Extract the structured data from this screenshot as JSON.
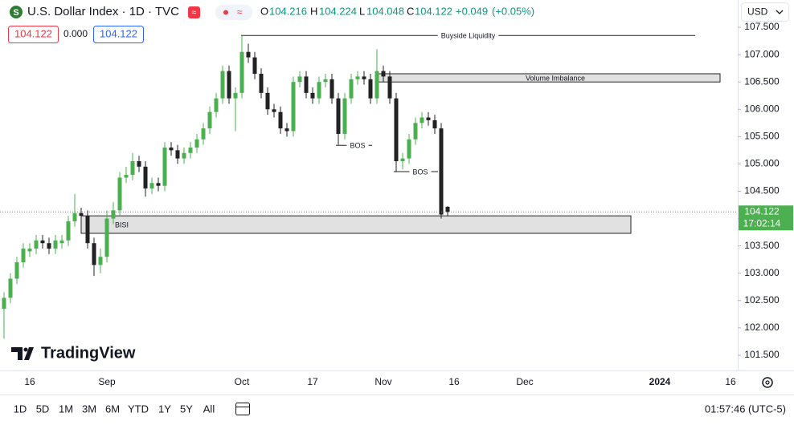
{
  "header": {
    "symbol": "U.S. Dollar Index · 1D · TVC",
    "o_label": "O",
    "h_label": "H",
    "l_label": "L",
    "c_label": "C",
    "change": "+0.049",
    "change_pct": "(+0.05%)",
    "bid": "104.122",
    "spread": "0.000",
    "ask": "104.122",
    "currency": "USD",
    "countdown": "17:02:14",
    "logo_text": "TradingView"
  },
  "toolbar": {
    "ranges": [
      "1D",
      "5D",
      "1M",
      "3M",
      "6M",
      "YTD",
      "1Y",
      "5Y",
      "All"
    ],
    "clock": "01:57:46 (UTC-5)"
  },
  "chart_data": {
    "type": "candlestick",
    "up_color": "#4caf50",
    "down_color": "#222222",
    "ylim": [
      101.22,
      108.0
    ],
    "yticks": [
      {
        "value": 101.5,
        "label": "101.500"
      },
      {
        "value": 102,
        "label": "102.000"
      },
      {
        "value": 102.5,
        "label": "102.500"
      },
      {
        "value": 103,
        "label": "103.000"
      },
      {
        "value": 103.5,
        "label": "103.500"
      },
      {
        "value": 104,
        "label": "104.000"
      },
      {
        "value": 104.5,
        "label": "104.500"
      },
      {
        "value": 105,
        "label": "105.000"
      },
      {
        "value": 105.5,
        "label": "105.500"
      },
      {
        "value": 106,
        "label": "106.000"
      },
      {
        "value": 106.5,
        "label": "106.500"
      },
      {
        "value": 107,
        "label": "107.000"
      },
      {
        "value": 107.5,
        "label": "107.500"
      }
    ],
    "categories": [
      null,
      null,
      null,
      null,
      "16",
      null,
      null,
      null,
      null,
      null,
      null,
      null,
      null,
      null,
      null,
      null,
      "Sep",
      null,
      null,
      null,
      null,
      null,
      null,
      null,
      null,
      null,
      null,
      null,
      null,
      null,
      null,
      null,
      null,
      null,
      null,
      null,
      null,
      "Oct",
      null,
      null,
      null,
      null,
      null,
      null,
      null,
      null,
      null,
      null,
      "17",
      null,
      null,
      null,
      null,
      null,
      null,
      null,
      null,
      null,
      null,
      "Nov",
      null,
      null,
      null,
      null,
      null,
      null,
      null,
      null,
      null,
      null,
      "16",
      null,
      null,
      null,
      null,
      null,
      null,
      null,
      null,
      null,
      null,
      "Dec",
      null,
      null,
      null,
      null,
      null,
      null,
      null,
      null,
      null,
      null,
      null,
      null,
      null,
      null,
      null,
      null,
      null,
      null,
      null,
      null,
      "2024",
      null,
      null,
      null,
      null,
      null,
      null,
      null,
      null,
      null,
      null,
      "16"
    ],
    "open": [
      102.35,
      102.55,
      102.9,
      103.2,
      103.4,
      103.45,
      103.6,
      103.55,
      103.45,
      103.55,
      103.6,
      103.95,
      104.1,
      104.05,
      103.55,
      103.15,
      103.3,
      104.0,
      104.15,
      104.75,
      104.8,
      105.05,
      104.95,
      104.55,
      104.65,
      104.6,
      105.3,
      105.25,
      105.1,
      105.2,
      105.3,
      105.45,
      105.65,
      105.95,
      106.2,
      106.7,
      106.2,
      106.3,
      107.05,
      106.95,
      106.65,
      106.3,
      106.0,
      105.95,
      105.65,
      105.6,
      106.5,
      106.6,
      106.3,
      106.2,
      106.5,
      106.55,
      106.2,
      105.55,
      106.2,
      106.55,
      106.6,
      106.55,
      106.2,
      106.7,
      106.6,
      106.2,
      105.05,
      105.1,
      105.45,
      105.75,
      105.85,
      105.8,
      105.65,
      104.216,
      null,
      null,
      null,
      null,
      null,
      null,
      null,
      null,
      null,
      null,
      null,
      null,
      null,
      null,
      null,
      null,
      null,
      null,
      null,
      null,
      null,
      null,
      null,
      null,
      null,
      null,
      null,
      null,
      null,
      null,
      null,
      null,
      null,
      null,
      null,
      null,
      null,
      null,
      null,
      null,
      null,
      null,
      null,
      null
    ],
    "high": [
      102.65,
      103.0,
      103.3,
      103.55,
      103.55,
      103.7,
      103.7,
      103.65,
      103.7,
      103.7,
      104.05,
      104.45,
      104.2,
      104.15,
      103.65,
      103.45,
      104.15,
      104.3,
      104.85,
      104.95,
      105.2,
      105.15,
      105.05,
      104.75,
      104.75,
      105.4,
      105.4,
      105.35,
      105.3,
      105.4,
      105.55,
      105.75,
      106.05,
      106.3,
      106.8,
      106.8,
      106.4,
      107.35,
      107.2,
      107.05,
      106.75,
      106.4,
      106.1,
      106.05,
      105.75,
      106.6,
      106.7,
      106.7,
      106.4,
      106.6,
      106.65,
      106.65,
      106.3,
      106.3,
      106.65,
      106.7,
      106.7,
      106.65,
      107.1,
      106.8,
      106.7,
      106.3,
      105.2,
      105.55,
      105.85,
      105.95,
      105.95,
      105.9,
      105.75,
      104.224,
      null,
      null,
      null,
      null,
      null,
      null,
      null,
      null,
      null,
      null,
      null,
      null,
      null,
      null,
      null,
      null,
      null,
      null,
      null,
      null,
      null,
      null,
      null,
      null,
      null,
      null,
      null,
      null,
      null,
      null,
      null,
      null,
      null,
      null,
      null,
      null,
      null,
      null,
      null,
      null,
      null,
      null,
      null,
      null
    ],
    "low": [
      101.8,
      102.45,
      102.8,
      103.1,
      103.3,
      103.35,
      103.45,
      103.35,
      103.35,
      103.45,
      103.5,
      103.85,
      103.95,
      103.45,
      102.95,
      103.0,
      103.2,
      103.9,
      104.05,
      104.65,
      104.7,
      104.85,
      104.4,
      104.45,
      104.5,
      104.5,
      105.15,
      105.0,
      105.0,
      105.1,
      105.2,
      105.35,
      105.55,
      105.85,
      106.1,
      106.1,
      105.6,
      106.2,
      106.85,
      106.55,
      106.2,
      105.9,
      105.85,
      105.55,
      105.5,
      105.5,
      106.4,
      106.2,
      106.1,
      106.1,
      106.4,
      106.1,
      105.35,
      105.45,
      106.1,
      106.45,
      106.45,
      106.1,
      106.1,
      106.5,
      106.1,
      104.85,
      104.9,
      105.0,
      105.35,
      105.65,
      105.7,
      105.55,
      104.0,
      104.048,
      null,
      null,
      null,
      null,
      null,
      null,
      null,
      null,
      null,
      null,
      null,
      null,
      null,
      null,
      null,
      null,
      null,
      null,
      null,
      null,
      null,
      null,
      null,
      null,
      null,
      null,
      null,
      null,
      null,
      null,
      null,
      null,
      null,
      null,
      null,
      null,
      null,
      null,
      null,
      null,
      null,
      null,
      null,
      null
    ],
    "close": [
      102.55,
      102.9,
      103.2,
      103.45,
      103.45,
      103.6,
      103.55,
      103.45,
      103.6,
      103.6,
      103.95,
      104.1,
      104.05,
      103.55,
      103.15,
      103.3,
      104.0,
      104.15,
      104.75,
      104.8,
      105.05,
      104.95,
      104.55,
      104.65,
      104.6,
      105.3,
      105.25,
      105.1,
      105.2,
      105.3,
      105.45,
      105.65,
      105.95,
      106.2,
      106.7,
      106.2,
      106.3,
      107.05,
      106.95,
      106.65,
      106.3,
      106.0,
      105.95,
      105.65,
      105.6,
      106.5,
      106.6,
      106.3,
      106.2,
      106.5,
      106.55,
      106.2,
      105.55,
      106.2,
      106.55,
      106.6,
      106.55,
      106.2,
      106.7,
      106.6,
      106.2,
      105.05,
      105.1,
      105.45,
      105.75,
      105.85,
      105.8,
      105.65,
      104.073,
      104.122,
      null,
      null,
      null,
      null,
      null,
      null,
      null,
      null,
      null,
      null,
      null,
      null,
      null,
      null,
      null,
      null,
      null,
      null,
      null,
      null,
      null,
      null,
      null,
      null,
      null,
      null,
      null,
      null,
      null,
      null,
      null,
      null,
      null,
      null,
      null,
      null,
      null,
      null,
      null,
      null,
      null,
      null,
      null,
      null
    ],
    "annotations": [
      {
        "label": "Buyside Liquidity",
        "value": 107.35
      },
      {
        "label": "Volume Imbalance",
        "range": [
          106.5,
          106.65
        ]
      },
      {
        "label": "BOS",
        "value": 105.34
      },
      {
        "label": "BOS",
        "value": 104.86
      },
      {
        "label": "BISI",
        "range": [
          103.73,
          104.05
        ]
      }
    ]
  }
}
